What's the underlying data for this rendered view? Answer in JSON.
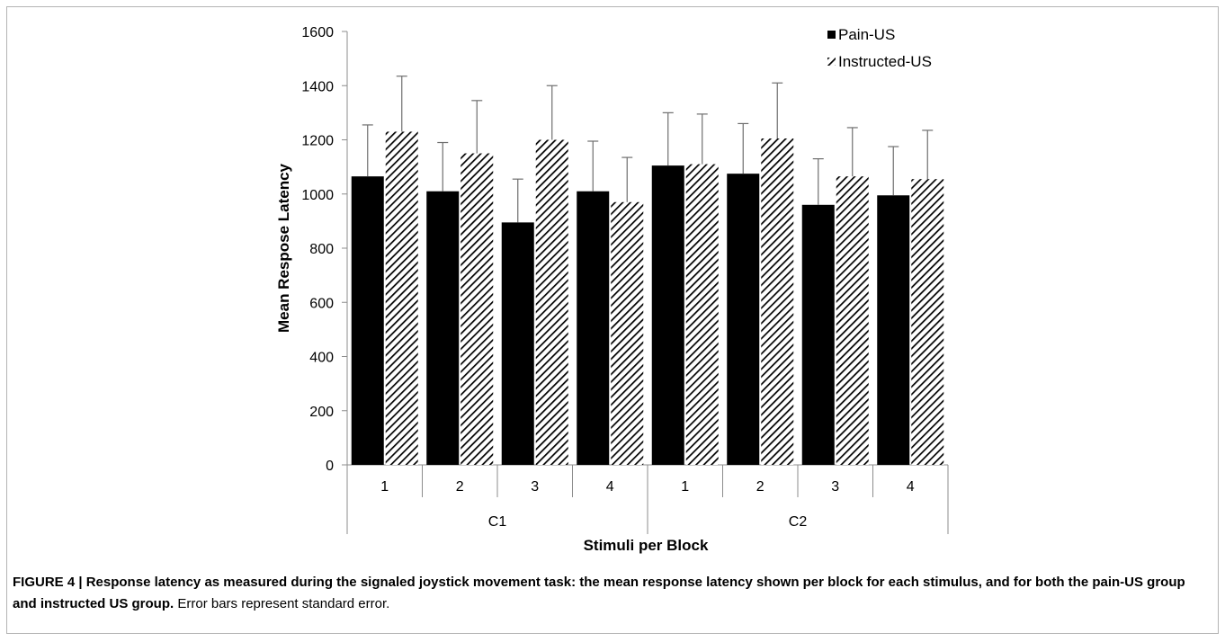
{
  "figure": {
    "caption_label": "FIGURE 4 |",
    "caption_title": "Response latency as measured during the signaled joystick movement task: the mean response latency shown per block for each stimulus, and for both the pain-US group and instructed US group.",
    "caption_note": "Error bars represent standard error."
  },
  "chart_data": {
    "type": "bar",
    "title": "",
    "xlabel": "Stimuli per Block",
    "ylabel": "Mean Respose Latency",
    "ylim": [
      0,
      1600
    ],
    "yticks": [
      0,
      200,
      400,
      600,
      800,
      1000,
      1200,
      1400,
      1600
    ],
    "groups": [
      {
        "label": "C1",
        "categories": [
          "1",
          "2",
          "3",
          "4"
        ]
      },
      {
        "label": "C2",
        "categories": [
          "1",
          "2",
          "3",
          "4"
        ]
      }
    ],
    "series": [
      {
        "name": "Pain-US",
        "pattern": "solid",
        "color": "#000000",
        "values": [
          1065,
          1010,
          895,
          1010,
          1105,
          1075,
          960,
          995
        ],
        "errors": [
          190,
          180,
          160,
          185,
          195,
          185,
          170,
          180
        ]
      },
      {
        "name": "Instructed-US",
        "pattern": "diagonal-hatch",
        "color": "#000000",
        "values": [
          1230,
          1150,
          1200,
          970,
          1110,
          1205,
          1065,
          1055
        ],
        "errors": [
          205,
          195,
          200,
          165,
          185,
          205,
          180,
          180
        ]
      }
    ],
    "legend_position": "top-right",
    "grid": false
  }
}
